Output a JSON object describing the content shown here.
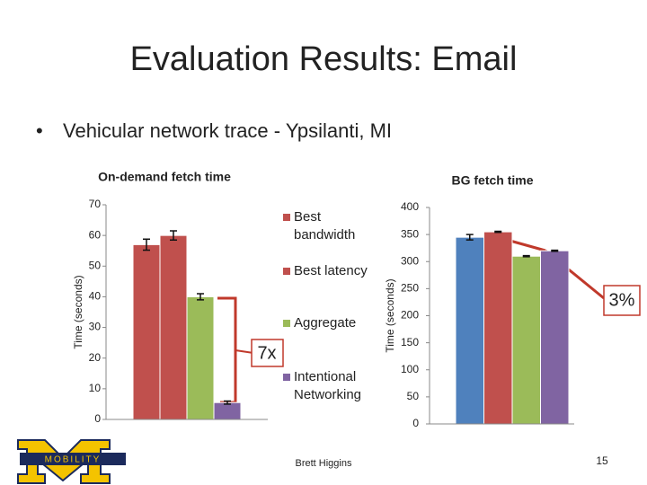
{
  "slide": {
    "title": "Evaluation Results: Email",
    "bullet": "Vehicular network trace - Ypsilanti, MI",
    "footer": "Brett Higgins",
    "page_number": "15",
    "logo_text": "MOBILITY"
  },
  "chart_data": [
    {
      "type": "bar",
      "title": "On-demand fetch time",
      "y_label": "Time (seconds)",
      "annotation": "7x",
      "ylim": [
        0,
        70
      ],
      "yticks": [
        0,
        10,
        20,
        30,
        40,
        50,
        60,
        70
      ],
      "series": [
        {
          "name": "Best bandwidth",
          "color": "#c0504d",
          "values": [
            57
          ],
          "errors": [
            1.8
          ]
        },
        {
          "name": "Best latency",
          "color": "#c0504d",
          "values": [
            60
          ],
          "errors": [
            1.5
          ]
        },
        {
          "name": "Aggregate",
          "color": "#9bbb59",
          "values": [
            40
          ],
          "errors": [
            1
          ]
        },
        {
          "name": "Intentional Networking",
          "color": "#8064a2",
          "values": [
            5.5
          ],
          "errors": [
            0.5
          ]
        }
      ]
    },
    {
      "type": "bar",
      "title": "BG fetch time",
      "y_label": "Time (seconds)",
      "annotation": "3%",
      "ylim": [
        0,
        400
      ],
      "yticks": [
        0,
        50,
        100,
        150,
        200,
        250,
        300,
        350,
        400
      ],
      "series": [
        {
          "color": "#4f81bd",
          "values": [
            345
          ],
          "errors": [
            5
          ]
        },
        {
          "color": "#c0504d",
          "values": [
            355
          ],
          "errors": [
            1
          ]
        },
        {
          "color": "#9bbb59",
          "values": [
            310
          ],
          "errors": [
            1
          ]
        },
        {
          "color": "#8064a2",
          "values": [
            320
          ],
          "errors": [
            1
          ]
        }
      ]
    }
  ]
}
